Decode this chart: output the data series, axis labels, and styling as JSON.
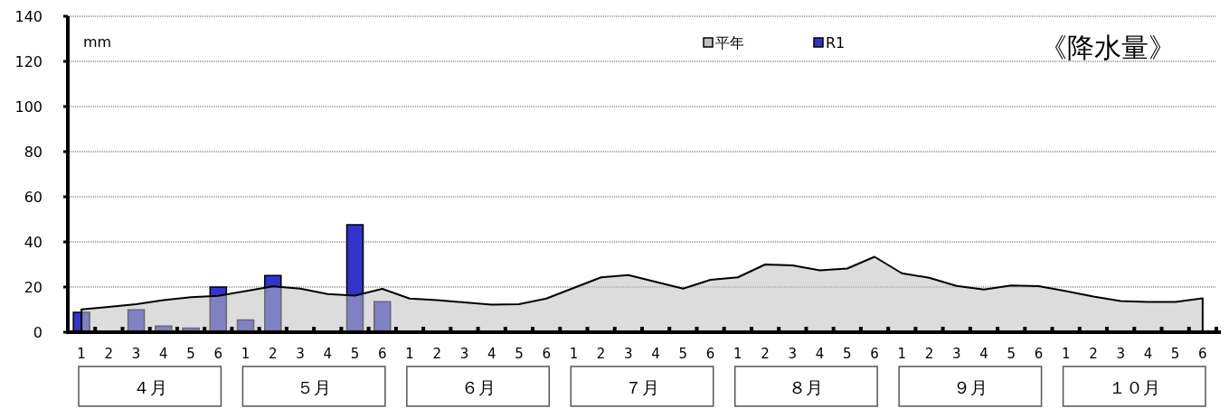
{
  "chart_data": {
    "type": "bar",
    "title": "《降水量》",
    "ylabel": "mm",
    "categories": [
      "1",
      "2",
      "3",
      "4",
      "5",
      "6",
      "1",
      "2",
      "3",
      "4",
      "5",
      "6",
      "1",
      "2",
      "3",
      "4",
      "5",
      "6",
      "1",
      "2",
      "3",
      "4",
      "5",
      "6",
      "1",
      "2",
      "3",
      "4",
      "5",
      "6",
      "1",
      "2",
      "3",
      "4",
      "5",
      "6",
      "1",
      "2",
      "3",
      "4",
      "5",
      "6"
    ],
    "series": [
      {
        "name": "平年",
        "type": "area",
        "color": "#c0c0c0",
        "values": [
          10.1,
          11.2,
          12.4,
          14.2,
          15.5,
          16.1,
          18.2,
          20.3,
          19.3,
          16.9,
          16.2,
          19.2,
          14.9,
          14.2,
          13.2,
          12.2,
          12.4,
          14.9,
          19.6,
          24.3,
          25.3,
          22.3,
          19.3,
          23.2,
          24.3,
          30.0,
          29.6,
          27.4,
          28.2,
          33.4,
          26.1,
          24.1,
          20.5,
          18.9,
          20.7,
          20.4,
          18.2,
          15.8,
          13.8,
          13.4,
          13.4,
          15.0
        ]
      },
      {
        "name": "R1",
        "color": "#3333cc",
        "values": [
          8.8,
          null,
          9.9,
          2.7,
          1.8,
          20.0,
          5.4,
          25.1,
          null,
          null,
          47.6,
          13.5,
          null,
          null,
          null,
          null,
          null,
          null,
          null,
          null,
          null,
          null,
          null,
          null,
          null,
          null,
          null,
          null,
          null,
          null,
          null,
          null,
          null,
          null,
          null,
          null,
          null,
          null,
          null,
          null,
          null,
          null
        ]
      }
    ],
    "annotations": [
      "４月",
      "５月",
      "６月",
      "７月",
      "８月",
      "９月",
      "１０月"
    ],
    "ylim": [
      0,
      140
    ],
    "yticks": [
      0,
      20,
      40,
      60,
      80,
      100,
      120,
      140
    ],
    "grid": "y",
    "legend": "top right"
  }
}
